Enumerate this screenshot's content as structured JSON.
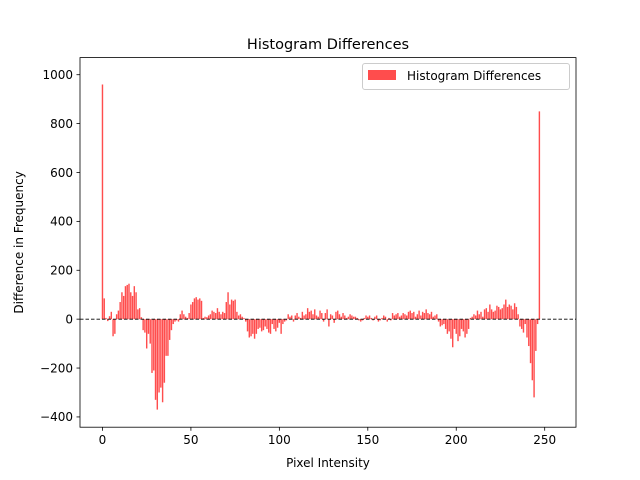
{
  "chart_data": {
    "type": "bar",
    "title": "Histogram Differences",
    "xlabel": "Pixel Intensity",
    "ylabel": "Difference in Frequency",
    "xlim": [
      -12.7,
      267.7
    ],
    "ylim": [
      -442,
      1070
    ],
    "xticks": [
      0,
      50,
      100,
      150,
      200,
      250
    ],
    "yticks": [
      -400,
      -200,
      0,
      200,
      400,
      600,
      800,
      1000
    ],
    "xtick_labels": [
      "0",
      "50",
      "100",
      "150",
      "200",
      "250"
    ],
    "ytick_labels": [
      "−400",
      "−200",
      "0",
      "200",
      "400",
      "600",
      "800",
      "1000"
    ],
    "grid": false,
    "zero_line": "dashed",
    "legend": {
      "placement": "top-right",
      "entries": [
        "Histogram Differences"
      ]
    },
    "series": [
      {
        "name": "Histogram Differences",
        "color": "#ff4d4d",
        "x_start": 0,
        "values": [
          960,
          85,
          5,
          -8,
          12,
          30,
          -70,
          -60,
          20,
          35,
          70,
          110,
          95,
          135,
          140,
          145,
          110,
          95,
          135,
          110,
          40,
          45,
          8,
          -45,
          -55,
          -120,
          -60,
          -100,
          -220,
          -210,
          -330,
          -370,
          -300,
          -280,
          -340,
          -260,
          -150,
          -150,
          -85,
          -45,
          -20,
          -10,
          -5,
          -10,
          20,
          35,
          20,
          10,
          5,
          25,
          60,
          70,
          85,
          90,
          80,
          85,
          75,
          5,
          10,
          8,
          15,
          20,
          35,
          30,
          25,
          45,
          30,
          20,
          30,
          25,
          70,
          110,
          60,
          80,
          75,
          80,
          30,
          15,
          20,
          10,
          5,
          -10,
          -50,
          -75,
          -70,
          -60,
          -80,
          -60,
          -40,
          -35,
          -50,
          -45,
          -30,
          -40,
          -55,
          -60,
          -20,
          -40,
          -50,
          -35,
          -15,
          -60,
          -20,
          -10,
          -5,
          20,
          10,
          15,
          -10,
          15,
          25,
          10,
          5,
          30,
          15,
          20,
          45,
          30,
          35,
          20,
          40,
          15,
          10,
          35,
          25,
          -10,
          25,
          40,
          -30,
          20,
          15,
          -15,
          30,
          35,
          20,
          10,
          25,
          15,
          5,
          10,
          20,
          15,
          10,
          10,
          5,
          -5,
          -10,
          -5,
          5,
          15,
          10,
          15,
          5,
          -5,
          10,
          15,
          -10,
          -5,
          5,
          15,
          10,
          -10,
          5,
          -5,
          25,
          15,
          20,
          25,
          10,
          15,
          25,
          20,
          15,
          30,
          35,
          25,
          30,
          10,
          20,
          35,
          15,
          30,
          25,
          40,
          25,
          20,
          30,
          10,
          15,
          20,
          -10,
          -30,
          -25,
          -20,
          -40,
          -60,
          -50,
          -80,
          -115,
          -40,
          -60,
          -90,
          -70,
          -40,
          -50,
          -75,
          -60,
          -40,
          5,
          10,
          20,
          15,
          35,
          20,
          30,
          10,
          40,
          45,
          30,
          60,
          40,
          30,
          35,
          55,
          50,
          40,
          45,
          60,
          80,
          50,
          60,
          55,
          40,
          65,
          50,
          20,
          -30,
          -40,
          -55,
          -20,
          -75,
          -110,
          -180,
          -250,
          -320,
          -130,
          -20,
          850
        ]
      }
    ]
  }
}
